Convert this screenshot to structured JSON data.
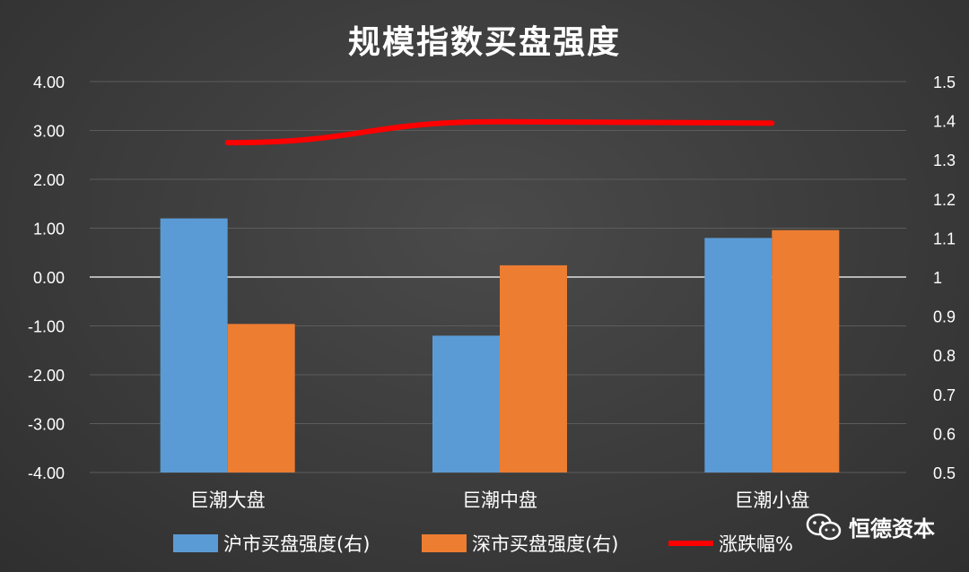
{
  "chart_data": {
    "type": "bar",
    "title": "规模指数买盘强度",
    "categories": [
      "巨潮大盘",
      "巨潮中盘",
      "巨潮小盘"
    ],
    "series": [
      {
        "name": "沪市买盘强度(右)",
        "type": "bar",
        "axis": "right",
        "color": "#5b9bd5",
        "values": [
          1.15,
          0.85,
          1.1
        ]
      },
      {
        "name": "深市买盘强度(右)",
        "type": "bar",
        "axis": "right",
        "color": "#ed7d31",
        "values": [
          0.88,
          1.03,
          1.12
        ]
      },
      {
        "name": "涨跌幅%",
        "type": "line",
        "axis": "left",
        "color": "#ff0000",
        "values": [
          2.75,
          3.18,
          3.15
        ]
      }
    ],
    "left_axis": {
      "ylim": [
        -4,
        4
      ],
      "ticks": [
        "4.00",
        "3.00",
        "2.00",
        "1.00",
        "0.00",
        "-1.00",
        "-2.00",
        "-3.00",
        "-4.00"
      ]
    },
    "right_axis": {
      "ylim": [
        0.5,
        1.5
      ],
      "ticks": [
        "1.5",
        "1.4",
        "1.3",
        "1.2",
        "1.1",
        "1",
        "0.9",
        "0.8",
        "0.7",
        "0.6",
        "0.5"
      ]
    },
    "grid": true,
    "legend_position": "bottom"
  },
  "watermark": {
    "text": "恒德资本",
    "icon": "wechat-icon"
  }
}
